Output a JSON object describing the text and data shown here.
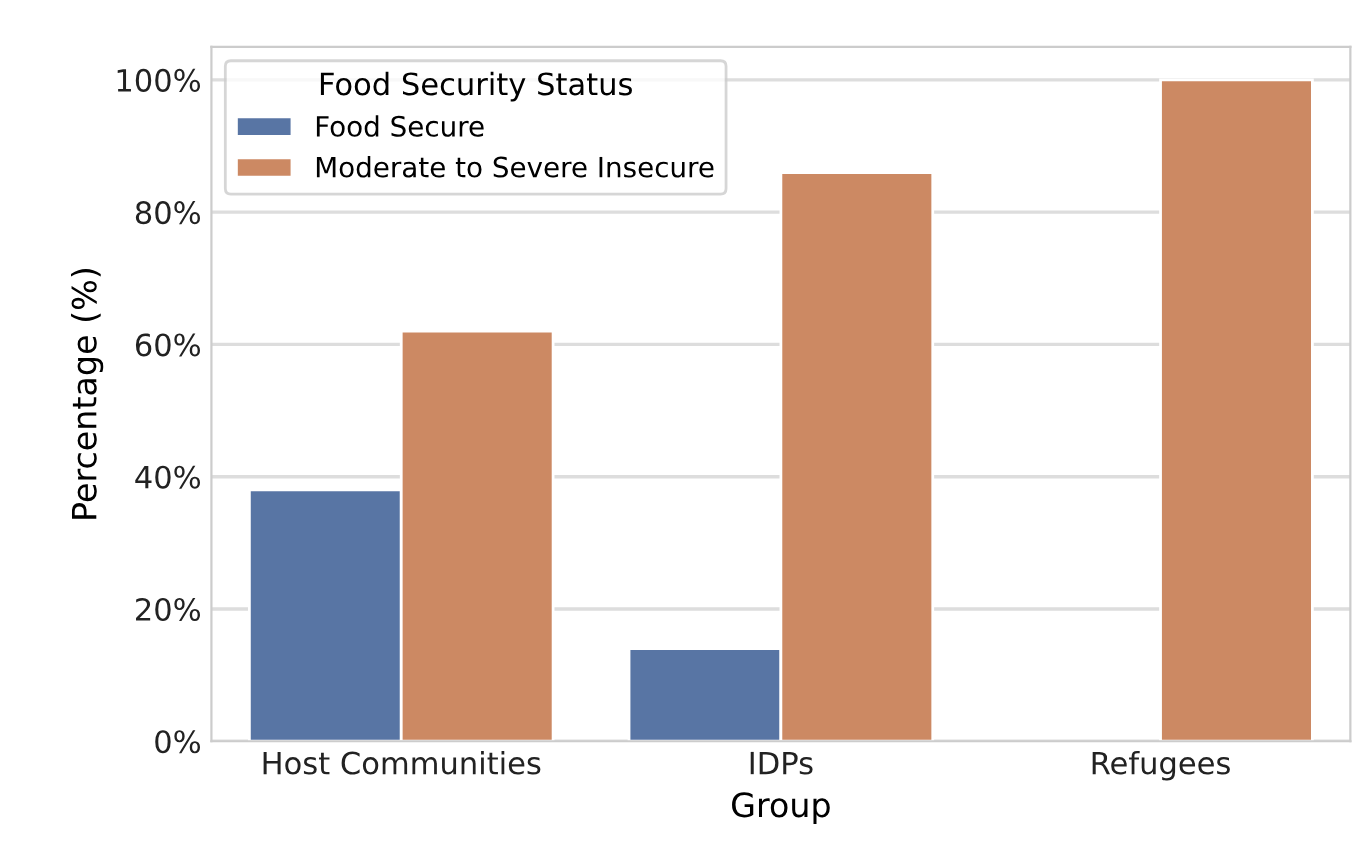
{
  "chart_data": {
    "type": "bar",
    "xlabel": "Group",
    "ylabel": "Percentage (%)",
    "legend_title": "Food Security Status",
    "categories": [
      "Host Communities",
      "IDPs",
      "Refugees"
    ],
    "series": [
      {
        "name": "Food Secure",
        "color": "#5875a4",
        "values": [
          38,
          14,
          0
        ]
      },
      {
        "name": "Moderate to Severe Insecure",
        "color": "#cc8963",
        "values": [
          62,
          86,
          100
        ]
      }
    ],
    "ylim": [
      0,
      105
    ],
    "yticks": [
      {
        "value": 0,
        "label": "0%"
      },
      {
        "value": 20,
        "label": "20%"
      },
      {
        "value": 40,
        "label": "40%"
      },
      {
        "value": 60,
        "label": "60%"
      },
      {
        "value": 80,
        "label": "80%"
      },
      {
        "value": 100,
        "label": "100%"
      }
    ],
    "grid": "y",
    "legend": "top left"
  }
}
